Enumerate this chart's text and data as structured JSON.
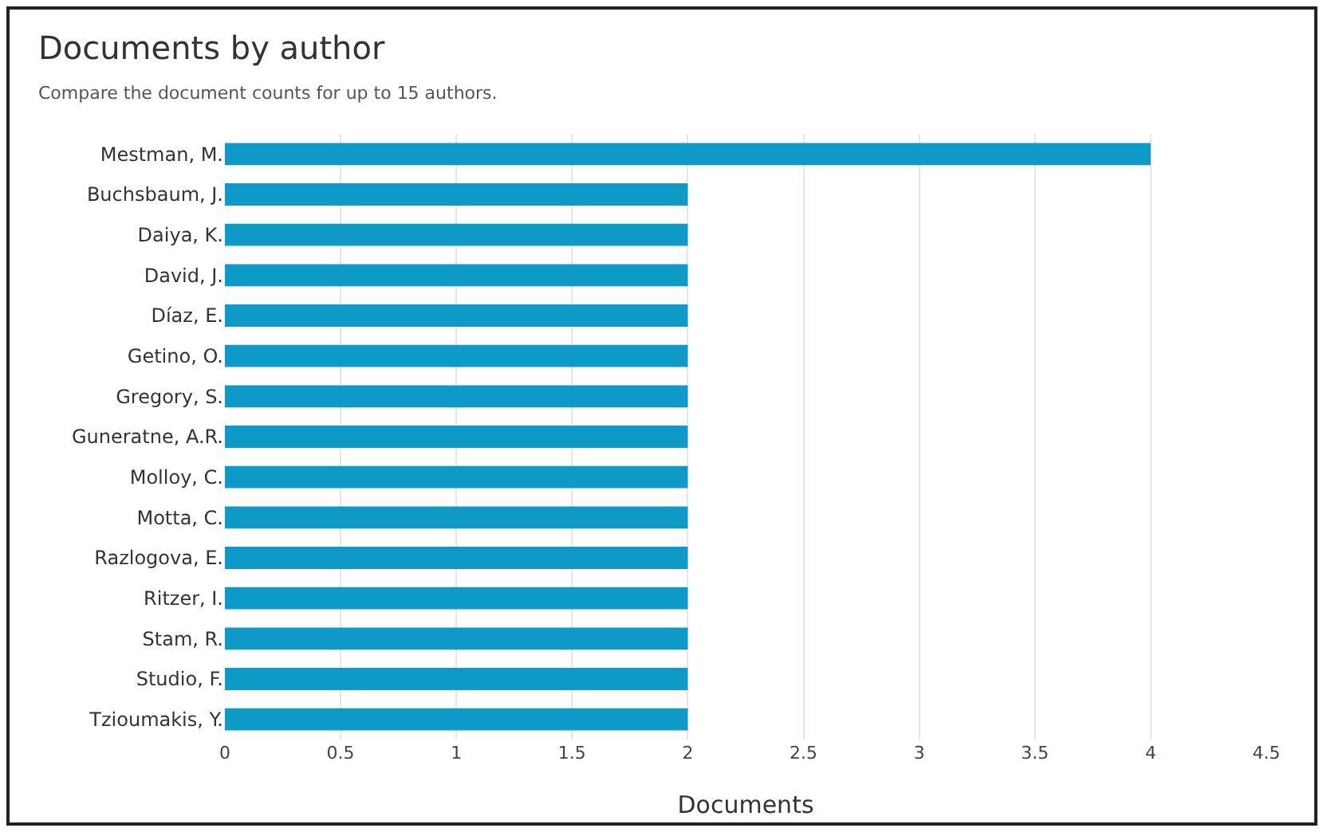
{
  "chart_data": {
    "type": "bar",
    "orientation": "horizontal",
    "title": "Documents by author",
    "subtitle": "Compare the document counts for up to 15 authors.",
    "xlabel": "Documents",
    "categories": [
      "Mestman, M.",
      "Buchsbaum, J.",
      "Daiya, K.",
      "David, J.",
      "Díaz, E.",
      "Getino, O.",
      "Gregory, S.",
      "Guneratne, A.R.",
      "Molloy, C.",
      "Motta, C.",
      "Razlogova, E.",
      "Ritzer, I.",
      "Stam, R.",
      "Studio, F.",
      "Tzioumakis, Y."
    ],
    "values": [
      4,
      2,
      2,
      2,
      2,
      2,
      2,
      2,
      2,
      2,
      2,
      2,
      2,
      2,
      2
    ],
    "color": "#0e9ac7",
    "xlim": [
      0,
      4.5
    ],
    "xticks": [
      0,
      0.5,
      1,
      1.5,
      2,
      2.5,
      3,
      3.5,
      4,
      4.5
    ],
    "grid": "x"
  }
}
